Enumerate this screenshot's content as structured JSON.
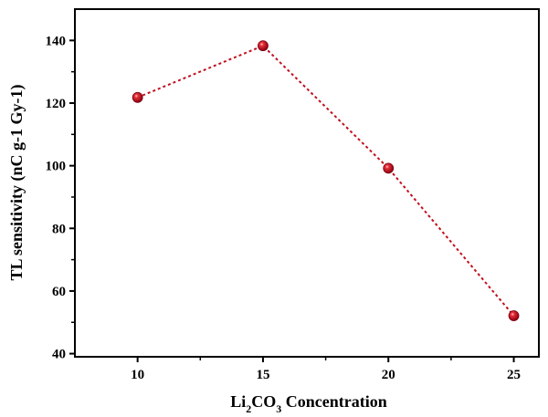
{
  "chart_data": {
    "type": "line",
    "x": [
      10,
      15,
      20,
      25
    ],
    "series": [
      {
        "values": [
          121.8,
          138.3,
          99.2,
          52.1
        ],
        "color": "#c0101e",
        "line_style": "dotted",
        "marker": "sphere"
      }
    ],
    "xlabel_parts": [
      "Li",
      "2",
      "CO",
      "3",
      " Concentration"
    ],
    "ylabel": "TL sensitivity (nC g-1 Gy-1)",
    "xticks": [
      "10",
      "15",
      "20",
      "25"
    ],
    "yticks": [
      "40",
      "60",
      "80",
      "100",
      "120",
      "140"
    ],
    "xlim": [
      7.5,
      26
    ],
    "ylim": [
      39,
      150
    ],
    "grid": false,
    "legend": "none"
  }
}
